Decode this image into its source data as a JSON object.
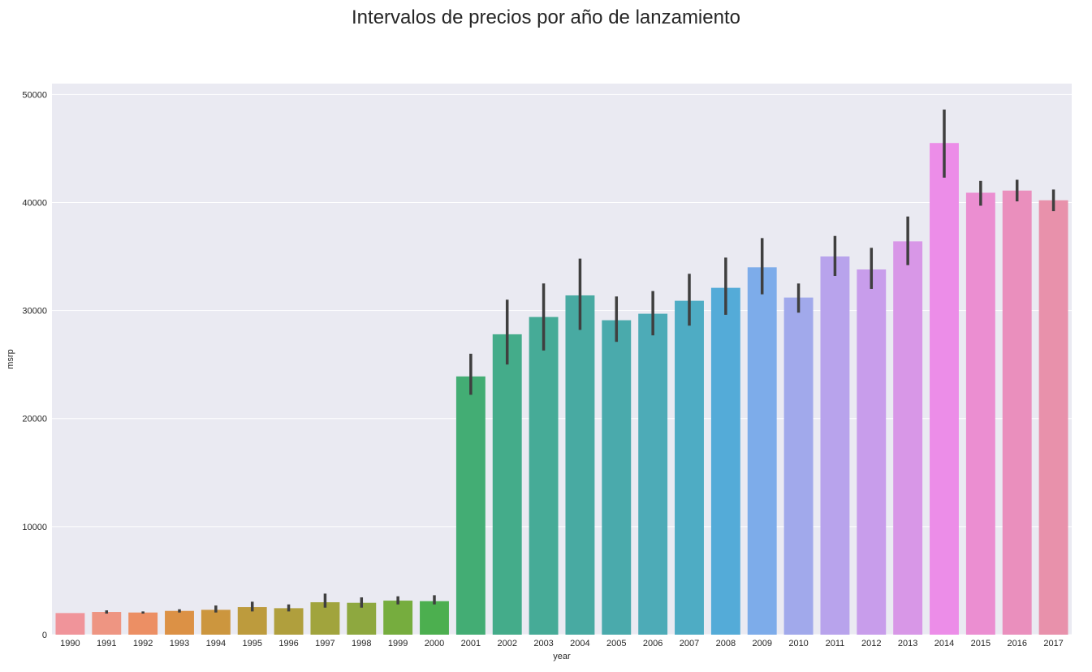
{
  "chart_data": {
    "type": "bar",
    "title": "Intervalos de precios por año de lanzamiento",
    "xlabel": "year",
    "ylabel": "msrp",
    "ylim": [
      0,
      51000
    ],
    "yticks": [
      0,
      10000,
      20000,
      30000,
      40000,
      50000
    ],
    "grid": true,
    "categories": [
      "1990",
      "1991",
      "1992",
      "1993",
      "1994",
      "1995",
      "1996",
      "1997",
      "1998",
      "1999",
      "2000",
      "2001",
      "2002",
      "2003",
      "2004",
      "2005",
      "2006",
      "2007",
      "2008",
      "2009",
      "2010",
      "2011",
      "2012",
      "2013",
      "2014",
      "2015",
      "2016",
      "2017"
    ],
    "values": [
      2000,
      2100,
      2050,
      2200,
      2300,
      2550,
      2450,
      3000,
      2950,
      3150,
      3100,
      23900,
      27800,
      29400,
      31400,
      29100,
      29700,
      30900,
      32100,
      34000,
      31200,
      35000,
      33800,
      36400,
      45500,
      40900,
      41100,
      40200
    ],
    "ci_low": [
      2000,
      1950,
      1950,
      2050,
      2050,
      2150,
      2150,
      2500,
      2500,
      2800,
      2800,
      22200,
      25000,
      26300,
      28200,
      27100,
      27700,
      28600,
      29600,
      31500,
      29800,
      33200,
      32000,
      34200,
      42300,
      39700,
      40100,
      39200
    ],
    "ci_high": [
      2000,
      2250,
      2150,
      2350,
      2700,
      3050,
      2800,
      3800,
      3450,
      3550,
      3650,
      26000,
      31000,
      32500,
      34800,
      31300,
      31800,
      33400,
      34900,
      36700,
      32500,
      36900,
      35800,
      38700,
      48600,
      42000,
      42100,
      41200
    ],
    "colors": [
      "#f0949a",
      "#ee9582",
      "#ec8f64",
      "#dc9145",
      "#cc963e",
      "#bd9b3d",
      "#b09f3d",
      "#a1a43d",
      "#8ea83f",
      "#76ad3e",
      "#4caf4f",
      "#43ad74",
      "#44ac8a",
      "#46ab97",
      "#48aaa2",
      "#4aaaac",
      "#4dabb7",
      "#4eacc4",
      "#54abd8",
      "#7dacea",
      "#a1a9eb",
      "#b8a3ec",
      "#c89deb",
      "#d897e7",
      "#ec8de8",
      "#eb8ed1",
      "#ea8fbd",
      "#e891ab"
    ]
  }
}
